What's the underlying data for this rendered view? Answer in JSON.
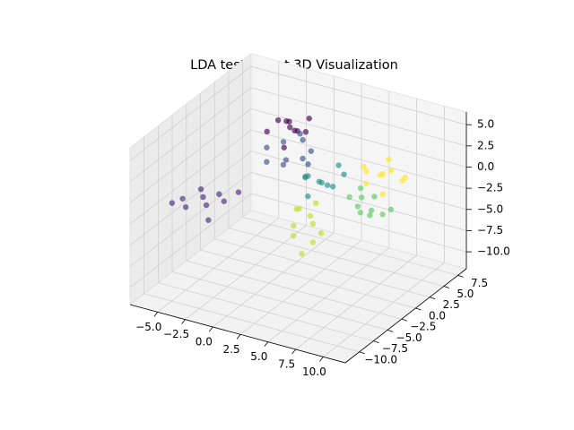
{
  "chart_data": {
    "type": "scatter3d",
    "title": "LDA testing set 3D Visualization",
    "xlim": [
      -7.5,
      12
    ],
    "ylim": [
      -12.5,
      9
    ],
    "zlim": [
      -12,
      6.5
    ],
    "xticks": [
      {
        "value": -5,
        "label": "−5.0"
      },
      {
        "value": -2.5,
        "label": "−2.5"
      },
      {
        "value": 0,
        "label": "0.0"
      },
      2.5,
      {
        "value": 5,
        "label": "5.0"
      },
      7.5,
      {
        "value": 10,
        "label": "10.0"
      }
    ],
    "yticks": [
      {
        "value": -10,
        "label": "−10.0"
      },
      {
        "value": -7.5,
        "label": "−7.5"
      },
      {
        "value": -5,
        "label": "−5.0"
      },
      {
        "value": -2.5,
        "label": "−2.5"
      },
      {
        "value": 0,
        "label": "0.0"
      },
      2.5,
      {
        "value": 5,
        "label": "5.0"
      },
      7.5
    ],
    "zticks": [
      {
        "value": -10,
        "label": "−10.0"
      },
      {
        "value": -7.5,
        "label": "−7.5"
      },
      {
        "value": -5,
        "label": "−5.0"
      },
      {
        "value": -2.5,
        "label": "−2.5"
      },
      {
        "value": 0,
        "label": "0.0"
      },
      2.5,
      {
        "value": 5,
        "label": "5.0"
      }
    ],
    "grid": true,
    "series": [
      {
        "color": "#472d7b",
        "x": [
          -6.5,
          -5.8,
          -5,
          -4.2,
          -3.5,
          -3,
          -2.2,
          -1.5,
          -4.8,
          -2.8
        ],
        "y": [
          -7,
          -6.5,
          -7.5,
          -6,
          -6.8,
          -5.5,
          -6.2,
          -5,
          -5.2,
          -7.8
        ],
        "z": [
          -2.5,
          -2,
          -2.2,
          -1.5,
          -1.8,
          -1,
          -1.2,
          -0.5,
          -1.2,
          -2.8
        ]
      },
      {
        "color": "#440154",
        "x": [
          -3,
          -2.5,
          -2,
          -1.5,
          -1,
          -0.5,
          0,
          -2.2,
          -1.2,
          -0.2
        ],
        "y": [
          3,
          4,
          5,
          3.5,
          4.5,
          3,
          4,
          5.5,
          2.5,
          5
        ],
        "z": [
          2,
          3,
          2.5,
          3.5,
          2,
          3,
          2.5,
          1.5,
          1,
          3.5
        ]
      },
      {
        "color": "#3b528b",
        "x": [
          -2,
          -1,
          0,
          0.5,
          1,
          -1.5,
          0,
          1.5,
          -0.5,
          2
        ],
        "y": [
          1,
          2,
          0.5,
          2.5,
          1.5,
          0,
          3,
          2,
          1,
          0.5
        ],
        "z": [
          1.5,
          2,
          1,
          2.5,
          1,
          0.5,
          2.8,
          1.8,
          0,
          1.2
        ]
      },
      {
        "color": "#21908d",
        "x": [
          2,
          3,
          4,
          3.5,
          2.5,
          4.5,
          5,
          3,
          1.5,
          4
        ],
        "y": [
          0,
          0.5,
          -1,
          1,
          -0.5,
          0,
          1,
          -1.5,
          1,
          2
        ],
        "z": [
          0,
          -0.5,
          0.5,
          -1,
          0.5,
          -0.3,
          0.8,
          -1.2,
          -0.8,
          1
        ]
      },
      {
        "color": "#5ec962",
        "x": [
          6,
          7,
          8,
          9,
          7.5,
          6.5,
          8.5,
          9.5,
          7,
          8
        ],
        "y": [
          0,
          -0.5,
          0.5,
          0,
          -1,
          1,
          -1,
          0.5,
          0.2,
          -0.3
        ],
        "z": [
          -1,
          -1.5,
          -0.5,
          -2,
          -1.8,
          -0.3,
          -1.2,
          -1.5,
          -0.8,
          -2.3
        ]
      },
      {
        "color": "#bddf26",
        "x": [
          4,
          5,
          6,
          4.5,
          5.5,
          5,
          6.5,
          4,
          5.5,
          3.5
        ],
        "y": [
          -6,
          -5,
          -6.5,
          -7,
          -5.5,
          -4,
          -6,
          -5,
          -7.5,
          -4.5
        ],
        "z": [
          -2,
          -1,
          -3,
          -2.5,
          -1.5,
          0,
          -2,
          -0.5,
          -4,
          -1
        ]
      },
      {
        "color": "#fde725",
        "x": [
          6,
          7,
          8,
          8.5,
          7.5,
          6.5,
          9,
          7,
          8,
          5.5
        ],
        "y": [
          3,
          4,
          3.5,
          4.5,
          2.5,
          2,
          4,
          5,
          2,
          3.5
        ],
        "z": [
          0.5,
          0,
          1,
          -0.5,
          0.8,
          -0.3,
          0.3,
          1.2,
          -1,
          0.6
        ]
      }
    ]
  }
}
